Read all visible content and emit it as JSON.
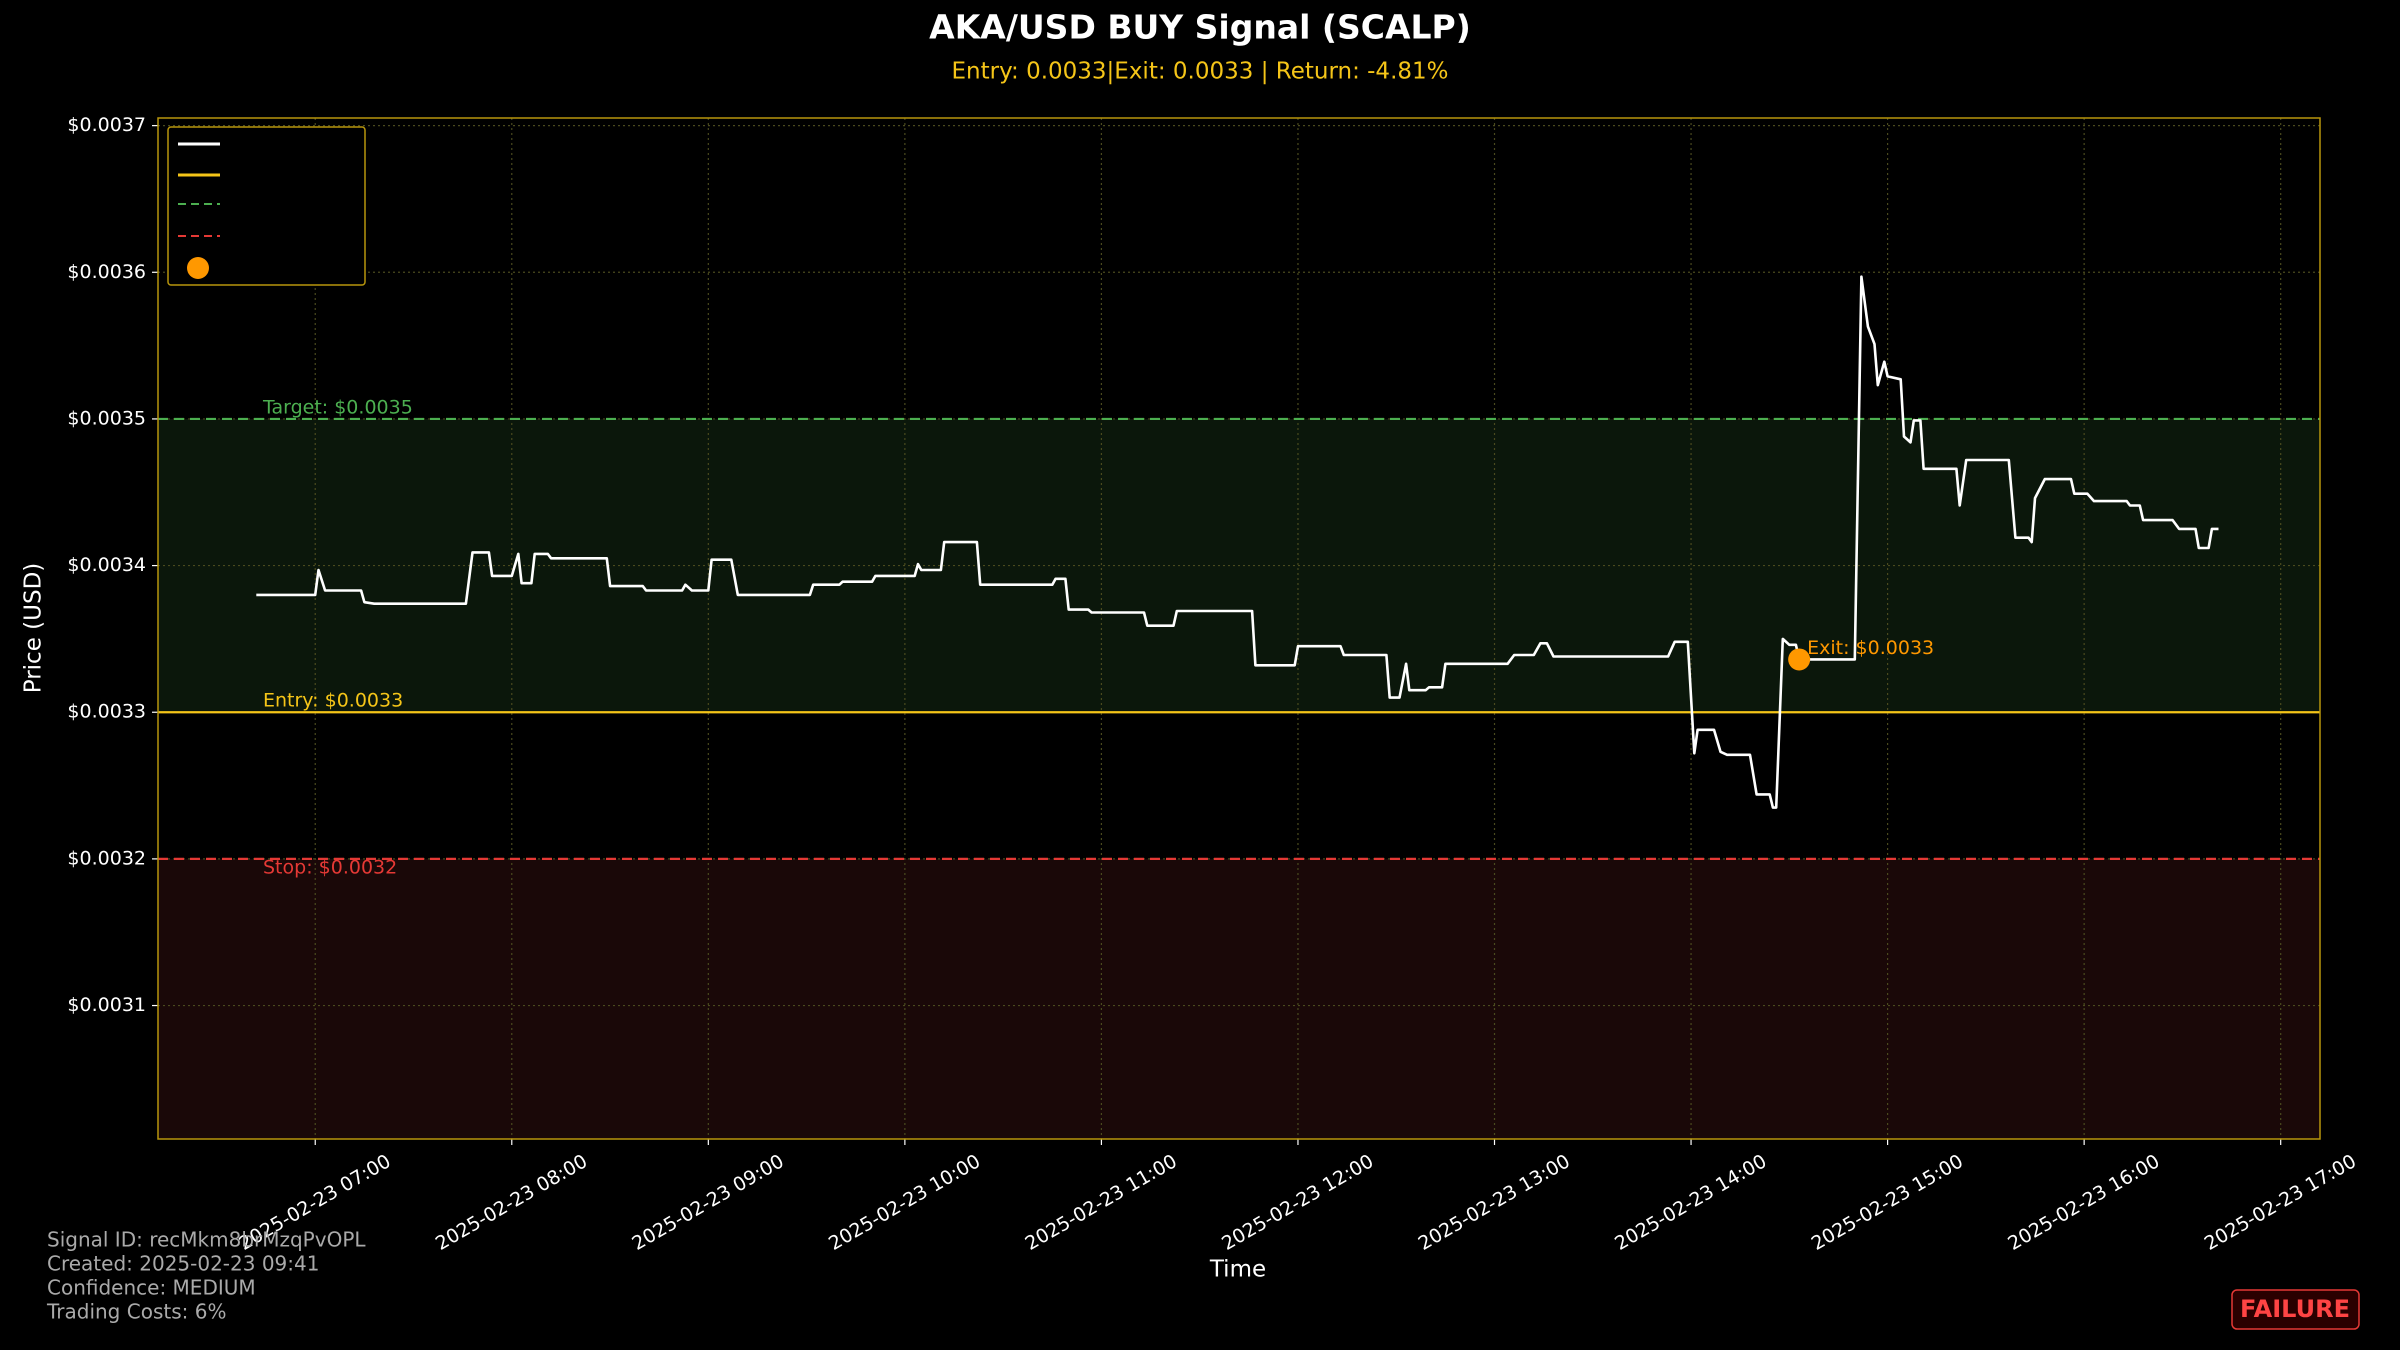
{
  "chart_data": {
    "type": "line",
    "title": "AKA/USD BUY Signal (SCALP)",
    "subtitle": "Entry: 0.0033|Exit: 0.0033 | Return: -4.81%",
    "x_label": "Time",
    "y_label": "Price (USD)",
    "color": "#ffffff",
    "x": [
      "2025-02-23 06:42",
      "2025-02-23 07:00",
      "2025-02-23 07:01",
      "2025-02-23 07:03",
      "2025-02-23 07:14",
      "2025-02-23 07:15",
      "2025-02-23 07:18",
      "2025-02-23 07:46",
      "2025-02-23 07:48",
      "2025-02-23 07:53",
      "2025-02-23 07:54",
      "2025-02-23 08:00",
      "2025-02-23 08:02",
      "2025-02-23 08:03",
      "2025-02-23 08:06",
      "2025-02-23 08:07",
      "2025-02-23 08:11",
      "2025-02-23 08:12",
      "2025-02-23 08:29",
      "2025-02-23 08:30",
      "2025-02-23 08:40",
      "2025-02-23 08:41",
      "2025-02-23 08:52",
      "2025-02-23 08:53",
      "2025-02-23 08:55",
      "2025-02-23 09:00",
      "2025-02-23 09:01",
      "2025-02-23 09:07",
      "2025-02-23 09:09",
      "2025-02-23 09:31",
      "2025-02-23 09:32",
      "2025-02-23 09:40",
      "2025-02-23 09:41",
      "2025-02-23 09:50",
      "2025-02-23 09:51",
      "2025-02-23 10:03",
      "2025-02-23 10:04",
      "2025-02-23 10:05",
      "2025-02-23 10:11",
      "2025-02-23 10:12",
      "2025-02-23 10:22",
      "2025-02-23 10:23",
      "2025-02-23 10:45",
      "2025-02-23 10:46",
      "2025-02-23 10:49",
      "2025-02-23 10:50",
      "2025-02-23 10:56",
      "2025-02-23 10:57",
      "2025-02-23 11:13",
      "2025-02-23 11:14",
      "2025-02-23 11:22",
      "2025-02-23 11:23",
      "2025-02-23 11:46",
      "2025-02-23 11:47",
      "2025-02-23 11:59",
      "2025-02-23 12:00",
      "2025-02-23 12:13",
      "2025-02-23 12:14",
      "2025-02-23 12:27",
      "2025-02-23 12:28",
      "2025-02-23 12:31",
      "2025-02-23 12:33",
      "2025-02-23 12:34",
      "2025-02-23 12:39",
      "2025-02-23 12:40",
      "2025-02-23 12:44",
      "2025-02-23 12:45",
      "2025-02-23 13:04",
      "2025-02-23 13:06",
      "2025-02-23 13:12",
      "2025-02-23 13:14",
      "2025-02-23 13:16",
      "2025-02-23 13:18",
      "2025-02-23 13:53",
      "2025-02-23 13:55",
      "2025-02-23 13:59",
      "2025-02-23 14:01",
      "2025-02-23 14:02",
      "2025-02-23 14:07",
      "2025-02-23 14:09",
      "2025-02-23 14:11",
      "2025-02-23 14:18",
      "2025-02-23 14:20",
      "2025-02-23 14:24",
      "2025-02-23 14:25",
      "2025-02-23 14:26",
      "2025-02-23 14:28",
      "2025-02-23 14:30",
      "2025-02-23 14:32",
      "2025-02-23 14:33",
      "2025-02-23 14:50",
      "2025-02-23 14:52",
      "2025-02-23 14:54",
      "2025-02-23 14:56",
      "2025-02-23 14:57",
      "2025-02-23 14:59",
      "2025-02-23 15:00",
      "2025-02-23 15:04",
      "2025-02-23 15:05",
      "2025-02-23 15:07",
      "2025-02-23 15:08",
      "2025-02-23 15:10",
      "2025-02-23 15:11",
      "2025-02-23 15:21",
      "2025-02-23 15:22",
      "2025-02-23 15:24",
      "2025-02-23 15:37",
      "2025-02-23 15:39",
      "2025-02-23 15:43",
      "2025-02-23 15:44",
      "2025-02-23 15:45",
      "2025-02-23 15:48",
      "2025-02-23 15:56",
      "2025-02-23 15:57",
      "2025-02-23 16:01",
      "2025-02-23 16:03",
      "2025-02-23 16:13",
      "2025-02-23 16:14",
      "2025-02-23 16:17",
      "2025-02-23 16:18",
      "2025-02-23 16:27",
      "2025-02-23 16:29",
      "2025-02-23 16:34",
      "2025-02-23 16:35",
      "2025-02-23 16:38",
      "2025-02-23 16:39",
      "2025-02-23 16:41"
    ],
    "values": [
      0.00338,
      0.00338,
      0.003397,
      0.003383,
      0.003383,
      0.003375,
      0.003374,
      0.003374,
      0.003409,
      0.003409,
      0.003393,
      0.003393,
      0.003408,
      0.003388,
      0.003388,
      0.003408,
      0.003408,
      0.003405,
      0.003405,
      0.003386,
      0.003386,
      0.003383,
      0.003383,
      0.003387,
      0.003383,
      0.003383,
      0.003404,
      0.003404,
      0.00338,
      0.00338,
      0.003387,
      0.003387,
      0.003389,
      0.003389,
      0.003393,
      0.003393,
      0.003401,
      0.003397,
      0.003397,
      0.003416,
      0.003416,
      0.003387,
      0.003387,
      0.003391,
      0.003391,
      0.00337,
      0.00337,
      0.003368,
      0.003368,
      0.003359,
      0.003359,
      0.003369,
      0.003369,
      0.003332,
      0.003332,
      0.003345,
      0.003345,
      0.003339,
      0.003339,
      0.00331,
      0.00331,
      0.003333,
      0.003315,
      0.003315,
      0.003317,
      0.003317,
      0.003333,
      0.003333,
      0.003339,
      0.003339,
      0.003347,
      0.003347,
      0.003338,
      0.003338,
      0.003348,
      0.003348,
      0.003272,
      0.003288,
      0.003288,
      0.003273,
      0.003271,
      0.003271,
      0.003244,
      0.003244,
      0.003235,
      0.003235,
      0.00335,
      0.003346,
      0.003346,
      0.003336,
      0.003336,
      0.003597,
      0.003563,
      0.003551,
      0.003523,
      0.003539,
      0.003529,
      0.003527,
      0.003488,
      0.003484,
      0.003499,
      0.003499,
      0.003466,
      0.003466,
      0.003441,
      0.003472,
      0.003472,
      0.003419,
      0.003419,
      0.003416,
      0.003446,
      0.003459,
      0.003459,
      0.003449,
      0.003449,
      0.003444,
      0.003444,
      0.003441,
      0.003441,
      0.003431,
      0.003431,
      0.003425,
      0.003425,
      0.003412,
      0.003412,
      0.003425,
      0.003425
    ],
    "xlim": [
      "2025-02-23 06:12",
      "2025-02-23 17:12"
    ],
    "xticks": [
      "2025-02-23 07:00",
      "2025-02-23 08:00",
      "2025-02-23 09:00",
      "2025-02-23 10:00",
      "2025-02-23 11:00",
      "2025-02-23 12:00",
      "2025-02-23 13:00",
      "2025-02-23 14:00",
      "2025-02-23 15:00",
      "2025-02-23 16:00",
      "2025-02-23 17:00"
    ],
    "ylim": [
      0.003009,
      0.0037052
    ],
    "yticks": [
      {
        "value": 0.0031,
        "label": "$0.0031"
      },
      {
        "value": 0.0032,
        "label": "$0.0032"
      },
      {
        "value": 0.0033,
        "label": "$0.0033"
      },
      {
        "value": 0.0034,
        "label": "$0.0034"
      },
      {
        "value": 0.0035,
        "label": "$0.0035"
      },
      {
        "value": 0.0036,
        "label": "$0.0036"
      },
      {
        "value": 0.0037,
        "label": "$0.0037"
      }
    ],
    "grid": true,
    "ref_lines": [
      {
        "value": 0.0035,
        "label": "Target: $0.0035",
        "color": "#4caf50",
        "dashed": true
      },
      {
        "value": 0.0033,
        "label": "Entry: $0.0033",
        "color": "#f5c518",
        "dashed": false
      },
      {
        "value": 0.0032,
        "label": "Stop: $0.0032",
        "color": "#e53935",
        "dashed": true
      }
    ],
    "markers": [
      {
        "x": "2025-02-23 14:33",
        "value": 0.003336,
        "label": "Exit: $0.0033",
        "color": "#ff9800"
      }
    ]
  },
  "footer": [
    "Signal ID: recMkm8brMzqPvOPL",
    "Created: 2025-02-23 09:41",
    "Confidence: MEDIUM",
    "Trading Costs: 6%"
  ],
  "badge": "FAILURE"
}
